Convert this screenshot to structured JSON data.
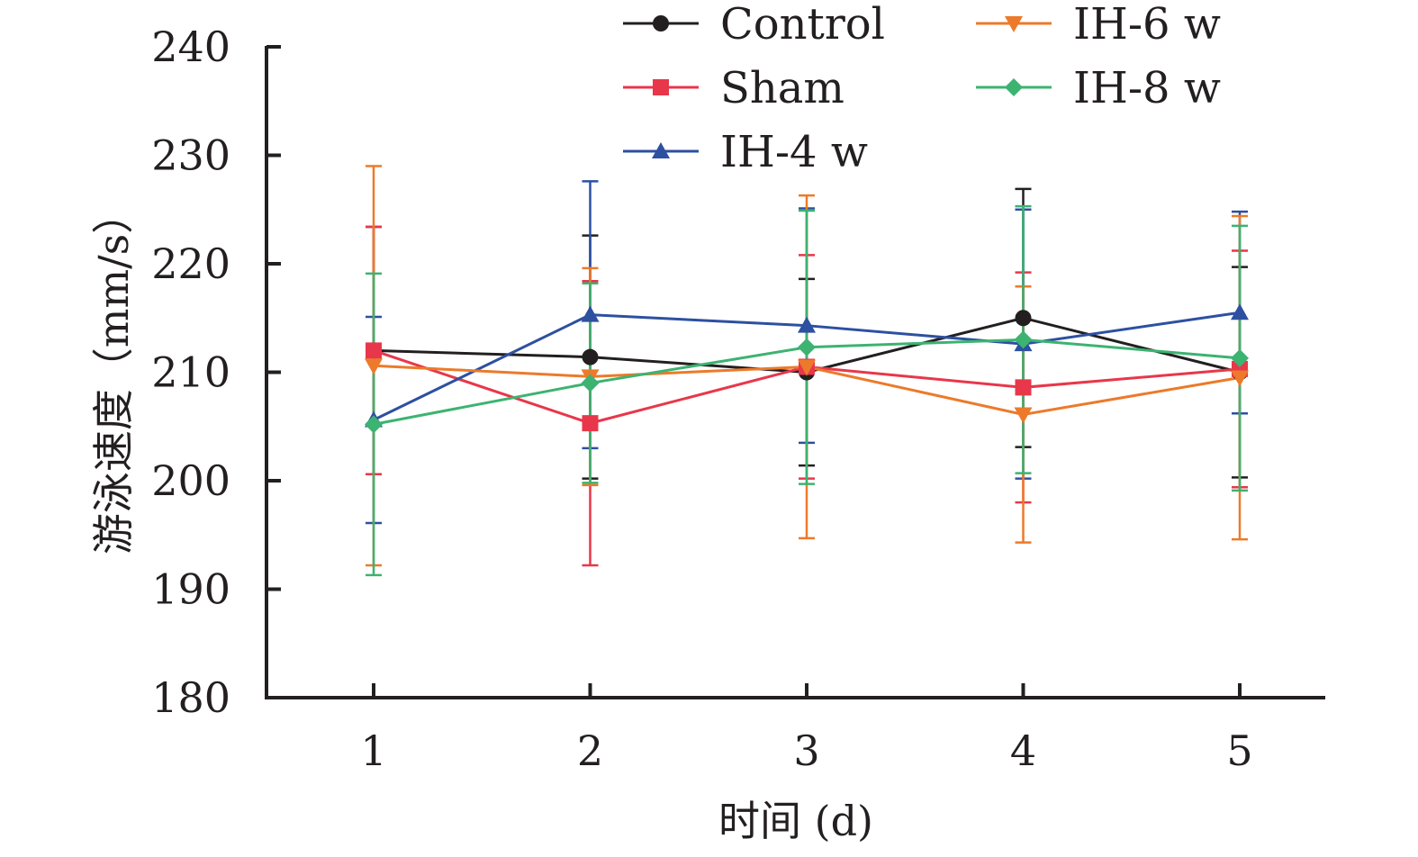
{
  "chart_data": {
    "type": "line",
    "title": "",
    "xlabel": "时间 (d)",
    "ylabel": "游泳速度（mm/s）",
    "x": [
      1,
      2,
      3,
      4,
      5
    ],
    "x_tick_labels": [
      "1",
      "2",
      "3",
      "4",
      "5"
    ],
    "ylim": [
      180,
      240
    ],
    "y_ticks": [
      180,
      190,
      200,
      210,
      220,
      230,
      240
    ],
    "y_tick_labels": [
      "180",
      "190",
      "200",
      "210",
      "220",
      "230",
      "240"
    ],
    "grid": false,
    "legend_position": "top-right",
    "series": [
      {
        "name": "Control",
        "color": "#231f20",
        "marker": "circle",
        "values": [
          212.0,
          211.4,
          210.0,
          215.0,
          210.0
        ],
        "errors": [
          11.4,
          11.2,
          8.6,
          11.9,
          9.7
        ]
      },
      {
        "name": "Sham",
        "color": "#e8374a",
        "marker": "square",
        "values": [
          212.0,
          205.3,
          210.5,
          208.6,
          210.3
        ],
        "errors": [
          11.4,
          13.1,
          10.3,
          10.6,
          10.9
        ]
      },
      {
        "name": "IH-4 w",
        "color": "#2d50a0",
        "marker": "triangle-up",
        "values": [
          205.6,
          215.3,
          214.3,
          212.6,
          215.5
        ],
        "errors": [
          9.5,
          12.3,
          10.8,
          12.4,
          9.3
        ]
      },
      {
        "name": "IH-6 w",
        "color": "#ec7a2a",
        "marker": "triangle-down",
        "values": [
          210.6,
          209.6,
          210.5,
          206.1,
          209.5
        ],
        "errors": [
          18.4,
          10.0,
          15.8,
          11.8,
          14.9
        ]
      },
      {
        "name": "IH-8 w",
        "color": "#3cb371",
        "marker": "diamond",
        "values": [
          205.2,
          209.0,
          212.3,
          213.0,
          211.3
        ],
        "errors": [
          13.9,
          9.2,
          12.6,
          12.3,
          12.2
        ]
      }
    ]
  }
}
